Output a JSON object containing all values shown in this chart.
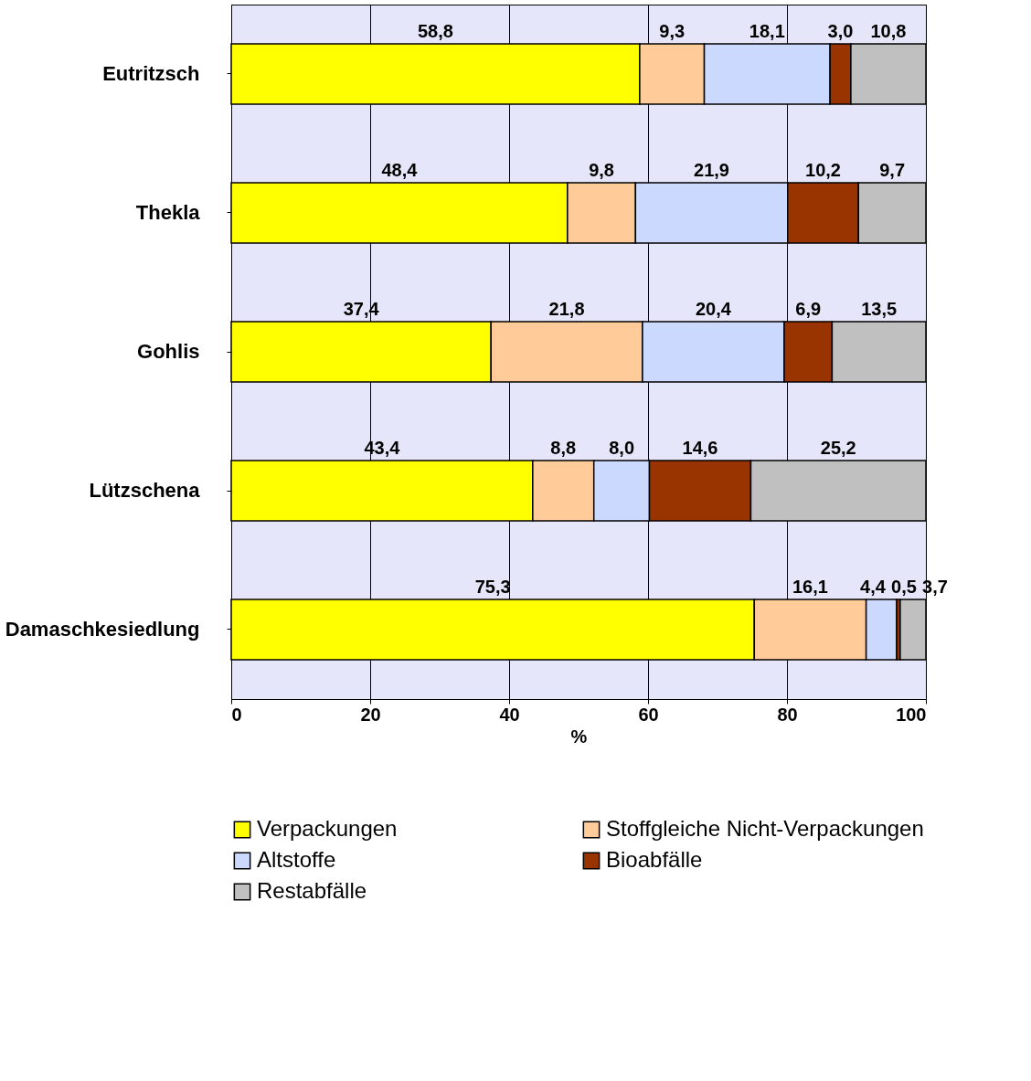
{
  "chart_data": {
    "type": "bar",
    "orientation": "horizontal",
    "stacked": true,
    "xlabel": "%",
    "categories": [
      "Eutritzsch",
      "Thekla",
      "Gohlis",
      "Lützschena",
      "Damaschkesiedlung"
    ],
    "series": [
      {
        "name": "Verpackungen",
        "color": "#ffff00",
        "values": [
          58.8,
          48.4,
          37.4,
          43.4,
          75.3
        ],
        "value_labels": [
          "58,8",
          "48,4",
          "37,4",
          "43,4",
          "75,3"
        ]
      },
      {
        "name": "Stoffgleiche Nicht-Verpackungen",
        "color": "#ffcc99",
        "values": [
          9.3,
          9.8,
          21.8,
          8.8,
          16.1
        ],
        "value_labels": [
          "9,3",
          "9,8",
          "21,8",
          "8,8",
          "16,1"
        ]
      },
      {
        "name": "Altstoffe",
        "color": "#ccd9ff",
        "values": [
          18.1,
          21.9,
          20.4,
          8.0,
          4.4
        ],
        "value_labels": [
          "18,1",
          "21,9",
          "20,4",
          "8,0",
          "4,4"
        ]
      },
      {
        "name": "Bioabfälle",
        "color": "#993300",
        "values": [
          3.0,
          10.2,
          6.9,
          14.6,
          0.5
        ],
        "value_labels": [
          "3,0",
          "10,2",
          "6,9",
          "14,6",
          "0,5"
        ]
      },
      {
        "name": "Restabfälle",
        "color": "#c0c0c0",
        "values": [
          10.8,
          9.7,
          13.5,
          25.2,
          3.7
        ],
        "value_labels": [
          "10,8",
          "9,7",
          "13,5",
          "25,2",
          "3,7"
        ]
      }
    ],
    "xlim": [
      0,
      100
    ],
    "xticks": [
      0,
      20,
      40,
      60,
      80,
      100
    ],
    "grid": "x",
    "legend": "bottom"
  }
}
